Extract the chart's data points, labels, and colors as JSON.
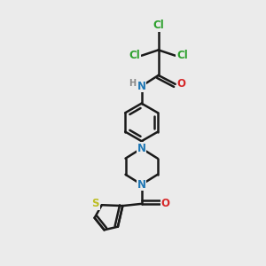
{
  "background_color": "#ebebeb",
  "bond_color": "#1a1a1a",
  "bond_width": 1.8,
  "atom_colors": {
    "Cl": "#2ca02c",
    "N": "#1f77b4",
    "O": "#d62728",
    "S": "#bcbd22",
    "H": "#888888"
  },
  "font_size": 8.5,
  "figsize": [
    3.0,
    3.0
  ],
  "dpi": 100,
  "xlim": [
    -1.6,
    1.9
  ],
  "ylim": [
    -3.4,
    1.7
  ]
}
